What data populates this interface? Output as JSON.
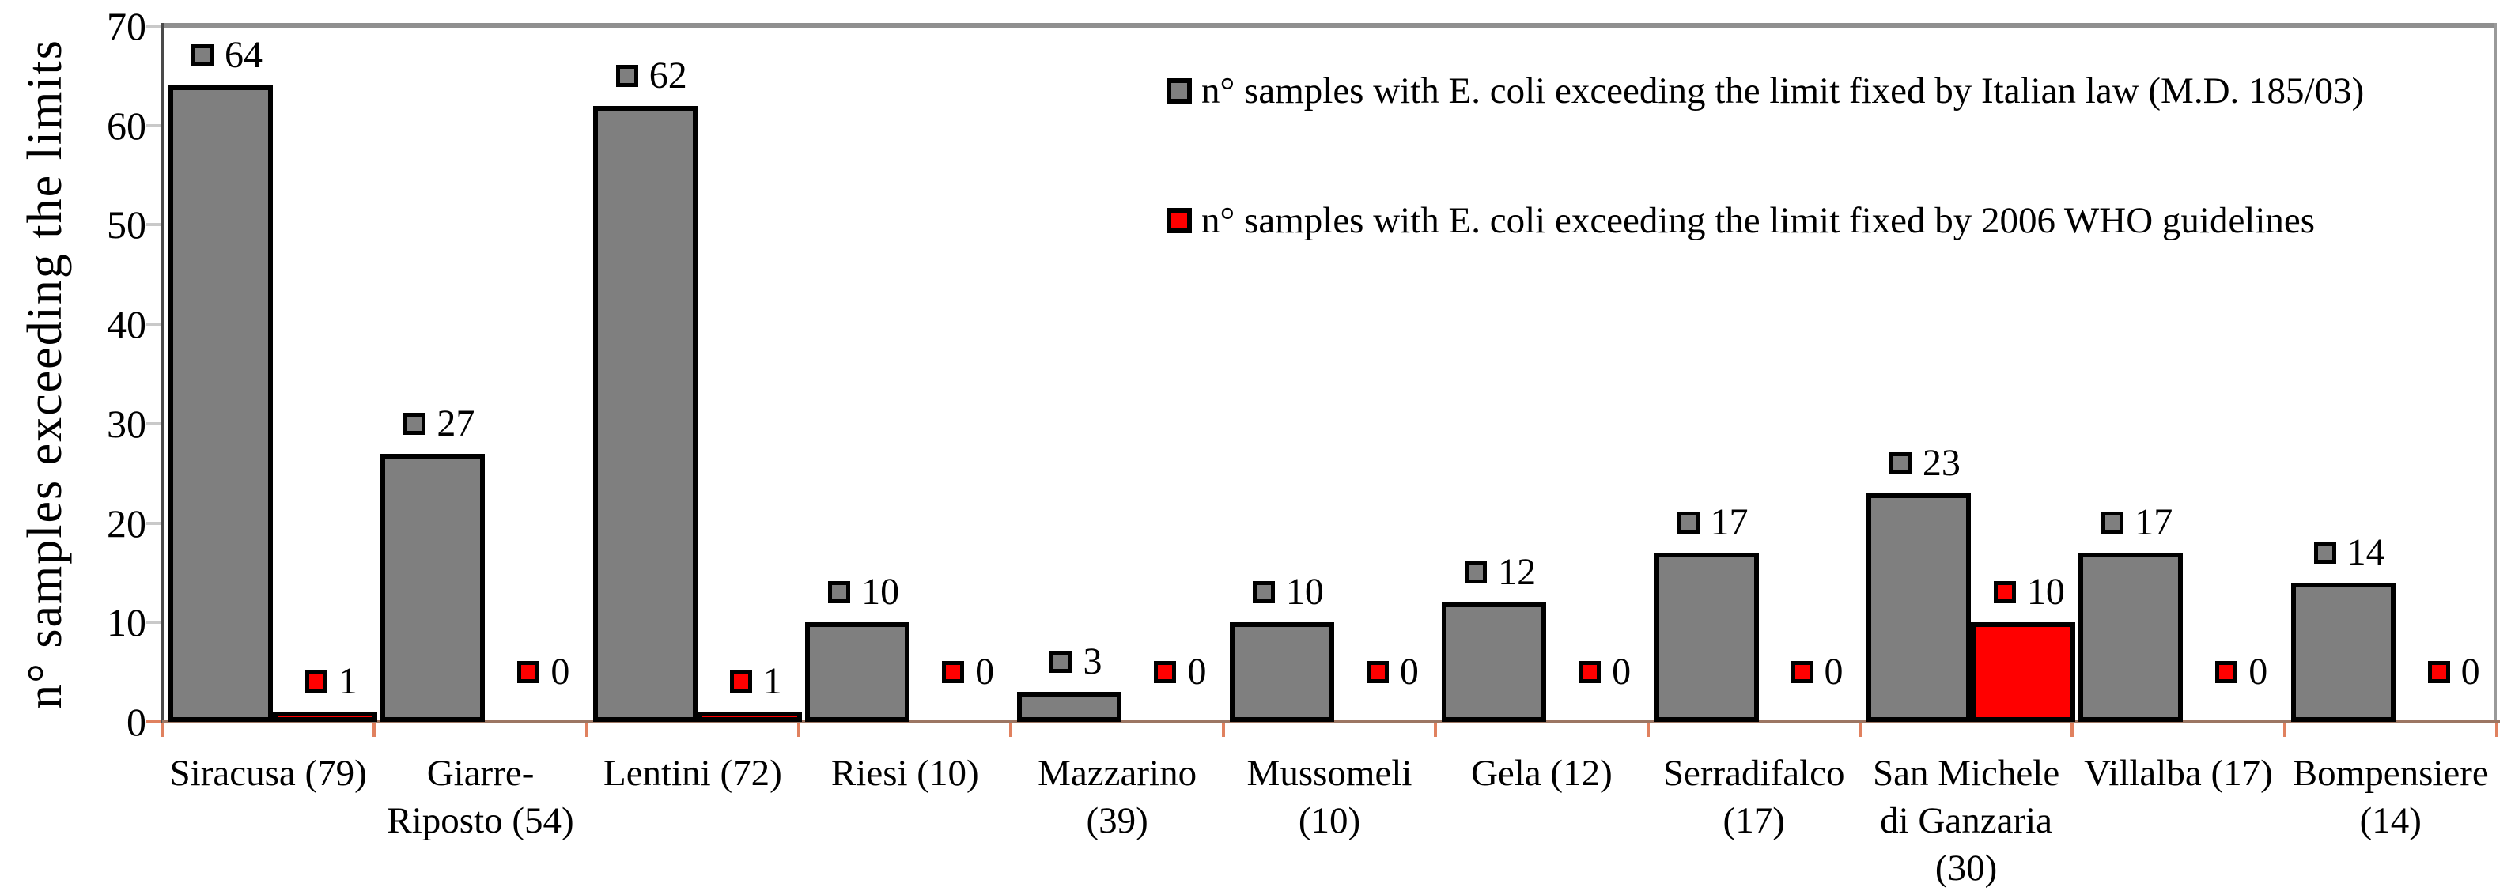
{
  "chart_data": {
    "type": "bar",
    "title": "",
    "ylabel": "n° samples exceeding the limits",
    "xlabel": "",
    "ylim": [
      0,
      70
    ],
    "yticks": [
      0,
      10,
      20,
      30,
      40,
      50,
      60,
      70
    ],
    "grid": false,
    "legend_position": "top-right-inside",
    "categories": [
      "Siracusa (79)",
      "Giarre-Riposto (54)",
      "Lentini (72)",
      "Riesi (10)",
      "Mazzarino (39)",
      "Mussomeli (10)",
      "Gela (12)",
      "Serradifalco (17)",
      "San Michele di Ganzaria (30)",
      "Villalba (17)",
      "Bompensiere (14)"
    ],
    "category_label_lines": [
      [
        "Siracusa (79)"
      ],
      [
        "Giarre-",
        "Riposto (54)"
      ],
      [
        "Lentini (72)"
      ],
      [
        "Riesi (10)"
      ],
      [
        "Mazzarino",
        "(39)"
      ],
      [
        "Mussomeli",
        "(10)"
      ],
      [
        "Gela (12)"
      ],
      [
        "Serradifalco",
        "(17)"
      ],
      [
        "San Michele",
        "di Ganzaria",
        "(30)"
      ],
      [
        "Villalba (17)"
      ],
      [
        "Bompensiere",
        "(14)"
      ]
    ],
    "series": [
      {
        "name": "n° samples with E. coli exceeding the limit fixed by Italian law (M.D. 185/03)",
        "color": "#7f7f7f",
        "values": [
          64,
          27,
          62,
          10,
          3,
          10,
          12,
          17,
          23,
          17,
          14
        ]
      },
      {
        "name": "n° samples with E. coli exceeding the limit fixed by 2006 WHO guidelines",
        "color": "#ff0000",
        "values": [
          1,
          0,
          1,
          0,
          0,
          0,
          0,
          0,
          10,
          0,
          0
        ]
      }
    ],
    "data_labels_shown": true
  },
  "colors": {
    "bar_border": "#000000",
    "axis_y": "#4a4a4a",
    "axis_x": "#9c7663",
    "x_tick": "#e0815f",
    "y_tick": "#c9c9c9",
    "plot_border": "#8f8f8f",
    "background": "#ffffff",
    "text": "#000000"
  }
}
